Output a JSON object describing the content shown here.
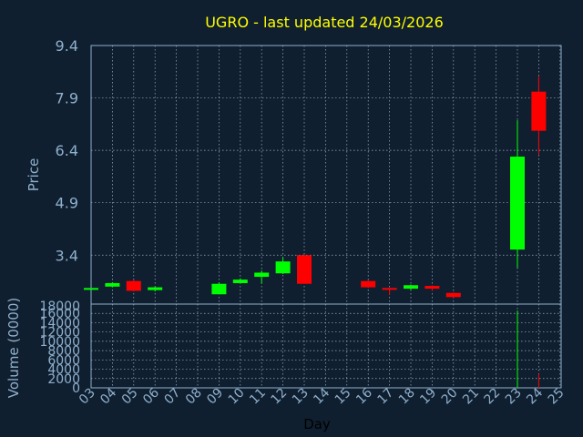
{
  "chart_data": {
    "type": "candlestick",
    "title": "UGRO - last updated 24/03/2026",
    "xlabel": "Day",
    "ylabel_price": "Price",
    "ylabel_volume": "Volume (0000)",
    "price_ticks": [
      "9.4",
      "7.9",
      "6.4",
      "4.9",
      "3.4"
    ],
    "price_ylim": [
      2.0,
      9.4
    ],
    "volume_ticks": [
      "18000",
      "16000",
      "14000",
      "12000",
      "10000",
      "8000",
      "6000",
      "4000",
      "2000",
      "0"
    ],
    "volume_ylim": [
      0,
      18000
    ],
    "x_ticks": [
      "03",
      "04",
      "05",
      "06",
      "07",
      "08",
      "09",
      "10",
      "11",
      "12",
      "13",
      "14",
      "15",
      "16",
      "17",
      "18",
      "19",
      "20",
      "21",
      "22",
      "23",
      "24",
      "25"
    ],
    "up_color": "#00ff00",
    "down_color": "#ff0000",
    "grid": true,
    "candles": [
      {
        "day": "03",
        "open": 2.42,
        "close": 2.46,
        "high": 2.46,
        "low": 2.42,
        "volume": 0
      },
      {
        "day": "04",
        "open": 2.5,
        "close": 2.6,
        "high": 2.62,
        "low": 2.48,
        "volume": 0
      },
      {
        "day": "05",
        "open": 2.66,
        "close": 2.38,
        "high": 2.7,
        "low": 2.36,
        "volume": 0
      },
      {
        "day": "06",
        "open": 2.4,
        "close": 2.48,
        "high": 2.5,
        "low": 2.36,
        "volume": 0
      },
      {
        "day": "09",
        "open": 2.28,
        "close": 2.58,
        "high": 2.62,
        "low": 2.28,
        "volume": 0
      },
      {
        "day": "10",
        "open": 2.6,
        "close": 2.7,
        "high": 2.74,
        "low": 2.58,
        "volume": 0
      },
      {
        "day": "11",
        "open": 2.78,
        "close": 2.9,
        "high": 2.96,
        "low": 2.58,
        "volume": 0
      },
      {
        "day": "12",
        "open": 2.88,
        "close": 3.22,
        "high": 3.34,
        "low": 2.86,
        "volume": 0
      },
      {
        "day": "13",
        "open": 3.4,
        "close": 2.58,
        "high": 3.4,
        "low": 2.58,
        "volume": 0
      },
      {
        "day": "16",
        "open": 2.66,
        "close": 2.48,
        "high": 2.68,
        "low": 2.46,
        "volume": 0
      },
      {
        "day": "17",
        "open": 2.46,
        "close": 2.44,
        "high": 2.46,
        "low": 2.26,
        "volume": 0
      },
      {
        "day": "18",
        "open": 2.44,
        "close": 2.54,
        "high": 2.56,
        "low": 2.4,
        "volume": 0
      },
      {
        "day": "19",
        "open": 2.52,
        "close": 2.44,
        "high": 2.54,
        "low": 2.38,
        "volume": 0
      },
      {
        "day": "20",
        "open": 2.32,
        "close": 2.2,
        "high": 2.34,
        "low": 2.18,
        "volume": 0
      },
      {
        "day": "23",
        "open": 3.56,
        "close": 6.22,
        "high": 7.26,
        "low": 3.04,
        "volume": 16600
      },
      {
        "day": "24",
        "open": 8.08,
        "close": 6.96,
        "high": 8.52,
        "low": 6.28,
        "volume": 3000
      }
    ]
  }
}
